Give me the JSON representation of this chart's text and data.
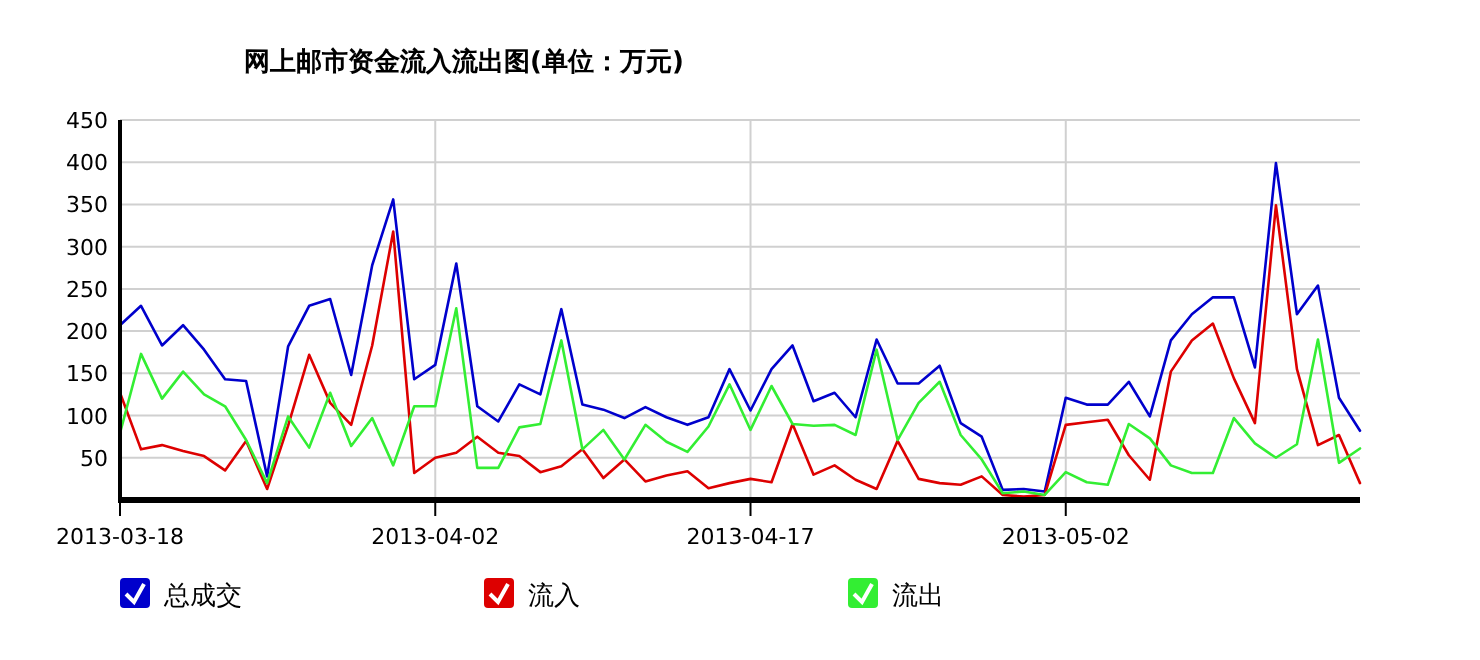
{
  "chart_data": {
    "type": "line",
    "title": "网上邮市资金流入流出图(单位：万元)",
    "x": [
      "2013-03-18",
      "2013-03-19",
      "2013-03-20",
      "2013-03-21",
      "2013-03-22",
      "2013-03-23",
      "2013-03-24",
      "2013-03-25",
      "2013-03-26",
      "2013-03-27",
      "2013-03-28",
      "2013-03-29",
      "2013-03-30",
      "2013-03-31",
      "2013-04-01",
      "2013-04-02",
      "2013-04-03",
      "2013-04-04",
      "2013-04-05",
      "2013-04-06",
      "2013-04-07",
      "2013-04-08",
      "2013-04-09",
      "2013-04-10",
      "2013-04-11",
      "2013-04-12",
      "2013-04-13",
      "2013-04-14",
      "2013-04-15",
      "2013-04-16",
      "2013-04-17",
      "2013-04-18",
      "2013-04-19",
      "2013-04-20",
      "2013-04-21",
      "2013-04-22",
      "2013-04-23",
      "2013-04-24",
      "2013-04-25",
      "2013-04-26",
      "2013-04-27",
      "2013-04-28",
      "2013-04-29",
      "2013-04-30",
      "2013-05-01",
      "2013-05-02",
      "2013-05-03",
      "2013-05-04",
      "2013-05-05",
      "2013-05-06",
      "2013-05-07",
      "2013-05-08",
      "2013-05-09",
      "2013-05-10",
      "2013-05-11",
      "2013-05-12",
      "2013-05-13",
      "2013-05-14",
      "2013-05-15",
      "2013-05-16"
    ],
    "series": [
      {
        "name": "总成交",
        "color": "#0000cc",
        "values": [
          207,
          230,
          183,
          207,
          178,
          143,
          141,
          28,
          182,
          230,
          238,
          148,
          278,
          356,
          143,
          160,
          280,
          111,
          93,
          137,
          125,
          226,
          113,
          107,
          97,
          110,
          98,
          89,
          98,
          155,
          106,
          155,
          183,
          117,
          127,
          98,
          190,
          138,
          138,
          159,
          91,
          75,
          12,
          13,
          10,
          121,
          113,
          113,
          140,
          99,
          189,
          220,
          240,
          240,
          157,
          399,
          220,
          254,
          121,
          82
        ]
      },
      {
        "name": "流入",
        "color": "#dd0000",
        "values": [
          127,
          60,
          65,
          58,
          52,
          35,
          70,
          13,
          88,
          172,
          115,
          89,
          183,
          318,
          32,
          50,
          56,
          75,
          56,
          52,
          33,
          40,
          60,
          26,
          48,
          22,
          29,
          34,
          14,
          20,
          25,
          21,
          90,
          30,
          41,
          24,
          13,
          70,
          25,
          20,
          18,
          28,
          6,
          4,
          6,
          89,
          92,
          95,
          53,
          24,
          152,
          189,
          209,
          144,
          91,
          349,
          155,
          65,
          77,
          20
        ]
      },
      {
        "name": "流出",
        "color": "#33ee33",
        "values": [
          79,
          173,
          120,
          152,
          125,
          111,
          71,
          20,
          99,
          62,
          127,
          64,
          97,
          41,
          111,
          111,
          227,
          38,
          38,
          86,
          90,
          189,
          60,
          83,
          48,
          89,
          69,
          57,
          87,
          137,
          83,
          135,
          90,
          88,
          89,
          77,
          178,
          71,
          115,
          140,
          77,
          48,
          8,
          10,
          6,
          33,
          21,
          18,
          90,
          73,
          41,
          32,
          32,
          97,
          67,
          50,
          66,
          190,
          44,
          61
        ]
      }
    ],
    "xlim": [
      "2013-03-18",
      "2013-05-16"
    ],
    "xticks": [
      "2013-03-18",
      "2013-04-02",
      "2013-04-17",
      "2013-05-02"
    ],
    "ylim": [
      0,
      450
    ],
    "yticks": [
      50,
      100,
      150,
      200,
      250,
      300,
      350,
      400,
      450
    ],
    "grid": true,
    "legend": "bottom",
    "marker": "none",
    "line_style": "solid"
  }
}
